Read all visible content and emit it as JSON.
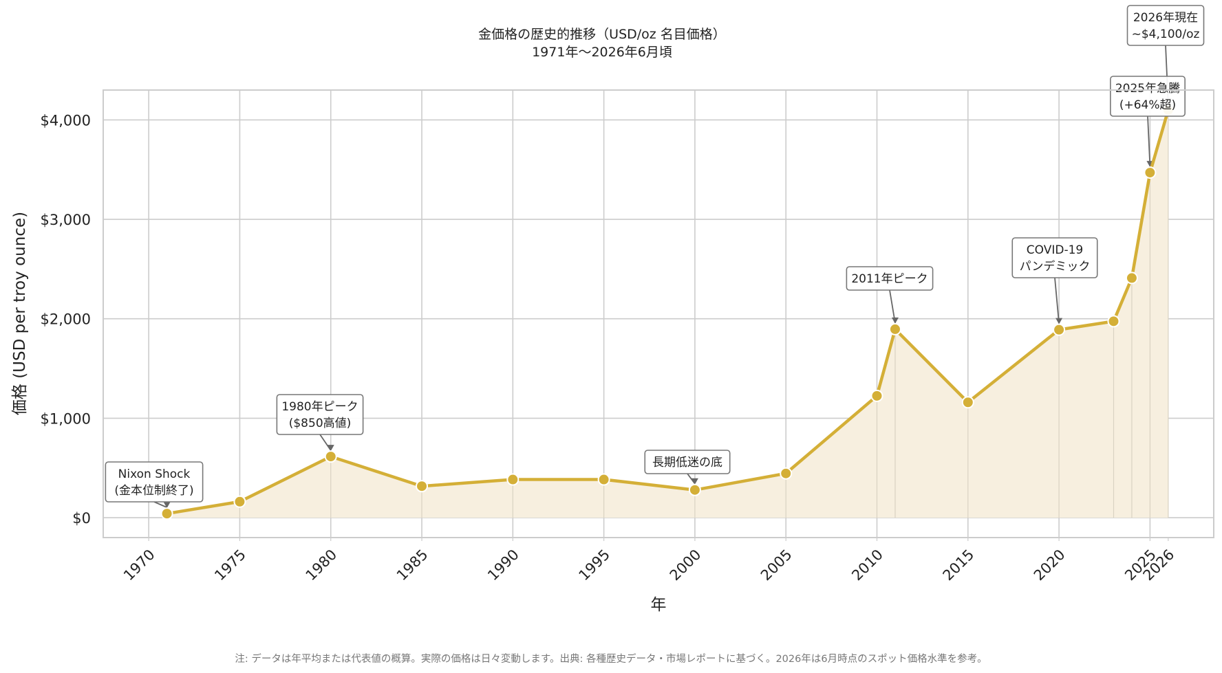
{
  "chart_data": {
    "type": "line",
    "title": "金価格の歴史的推移（USD/oz 名目価格）",
    "subtitle": "1971年〜2026年6月頃",
    "xlabel": "年",
    "ylabel": "価格 (USD per troy ounce)",
    "xlim": [
      1967.5,
      2028.5
    ],
    "ylim": [
      -200,
      4300
    ],
    "x_ticks": [
      1970,
      1975,
      1980,
      1985,
      1990,
      1995,
      2000,
      2005,
      2010,
      2015,
      2020,
      2025,
      2026
    ],
    "x_tick_labels": [
      "1970",
      "1975",
      "1980",
      "1985",
      "1990",
      "1995",
      "2000",
      "2005",
      "2010",
      "2015",
      "2020",
      "2025",
      "2026"
    ],
    "y_ticks": [
      0,
      1000,
      2000,
      3000,
      4000
    ],
    "y_tick_labels": [
      "$0",
      "$1,000",
      "$2,000",
      "$3,000",
      "$4,000"
    ],
    "grid": true,
    "fill_under": true,
    "colors": {
      "line": "#D4AF37",
      "marker": "#D4AF37",
      "fill": "#F7EFDF",
      "grid": "#CCCCCC",
      "frame": "#CCCCCC",
      "annotation_border": "#777777",
      "arrow": "#666666"
    },
    "series": [
      {
        "x": [
          1971,
          1975,
          1980,
          1985,
          1990,
          1995,
          2000,
          2005,
          2010,
          2011,
          2015,
          2020,
          2023,
          2024,
          2025,
          2026
        ],
        "y": [
          41,
          161,
          615,
          317,
          384,
          384,
          279,
          445,
          1225,
          1895,
          1160,
          1890,
          1975,
          2410,
          3470,
          4100
        ]
      }
    ],
    "annotations": [
      {
        "lines": [
          "Nixon Shock",
          "(金本位制終了)"
        ],
        "x": 1971,
        "y": 41
      },
      {
        "lines": [
          "1980年ピーク",
          "($850高値)"
        ],
        "x": 1980,
        "y": 615
      },
      {
        "lines": [
          "長期低迷の底"
        ],
        "x": 2000,
        "y": 279
      },
      {
        "lines": [
          "2011年ピーク"
        ],
        "x": 2011,
        "y": 1895
      },
      {
        "lines": [
          "COVID-19",
          "パンデミック"
        ],
        "x": 2020,
        "y": 1890
      },
      {
        "lines": [
          "2025年急騰",
          "(+64%超)"
        ],
        "x": 2025,
        "y": 3470
      },
      {
        "lines": [
          "2026年現在",
          "~$4,100/oz"
        ],
        "x": 2026,
        "y": 4100
      }
    ],
    "note": "注: データは年平均または代表値の概算。実際の価格は日々変動します。出典: 各種歴史データ・市場レポートに基づく。2026年は6月時点のスポット価格水準を参考。"
  }
}
